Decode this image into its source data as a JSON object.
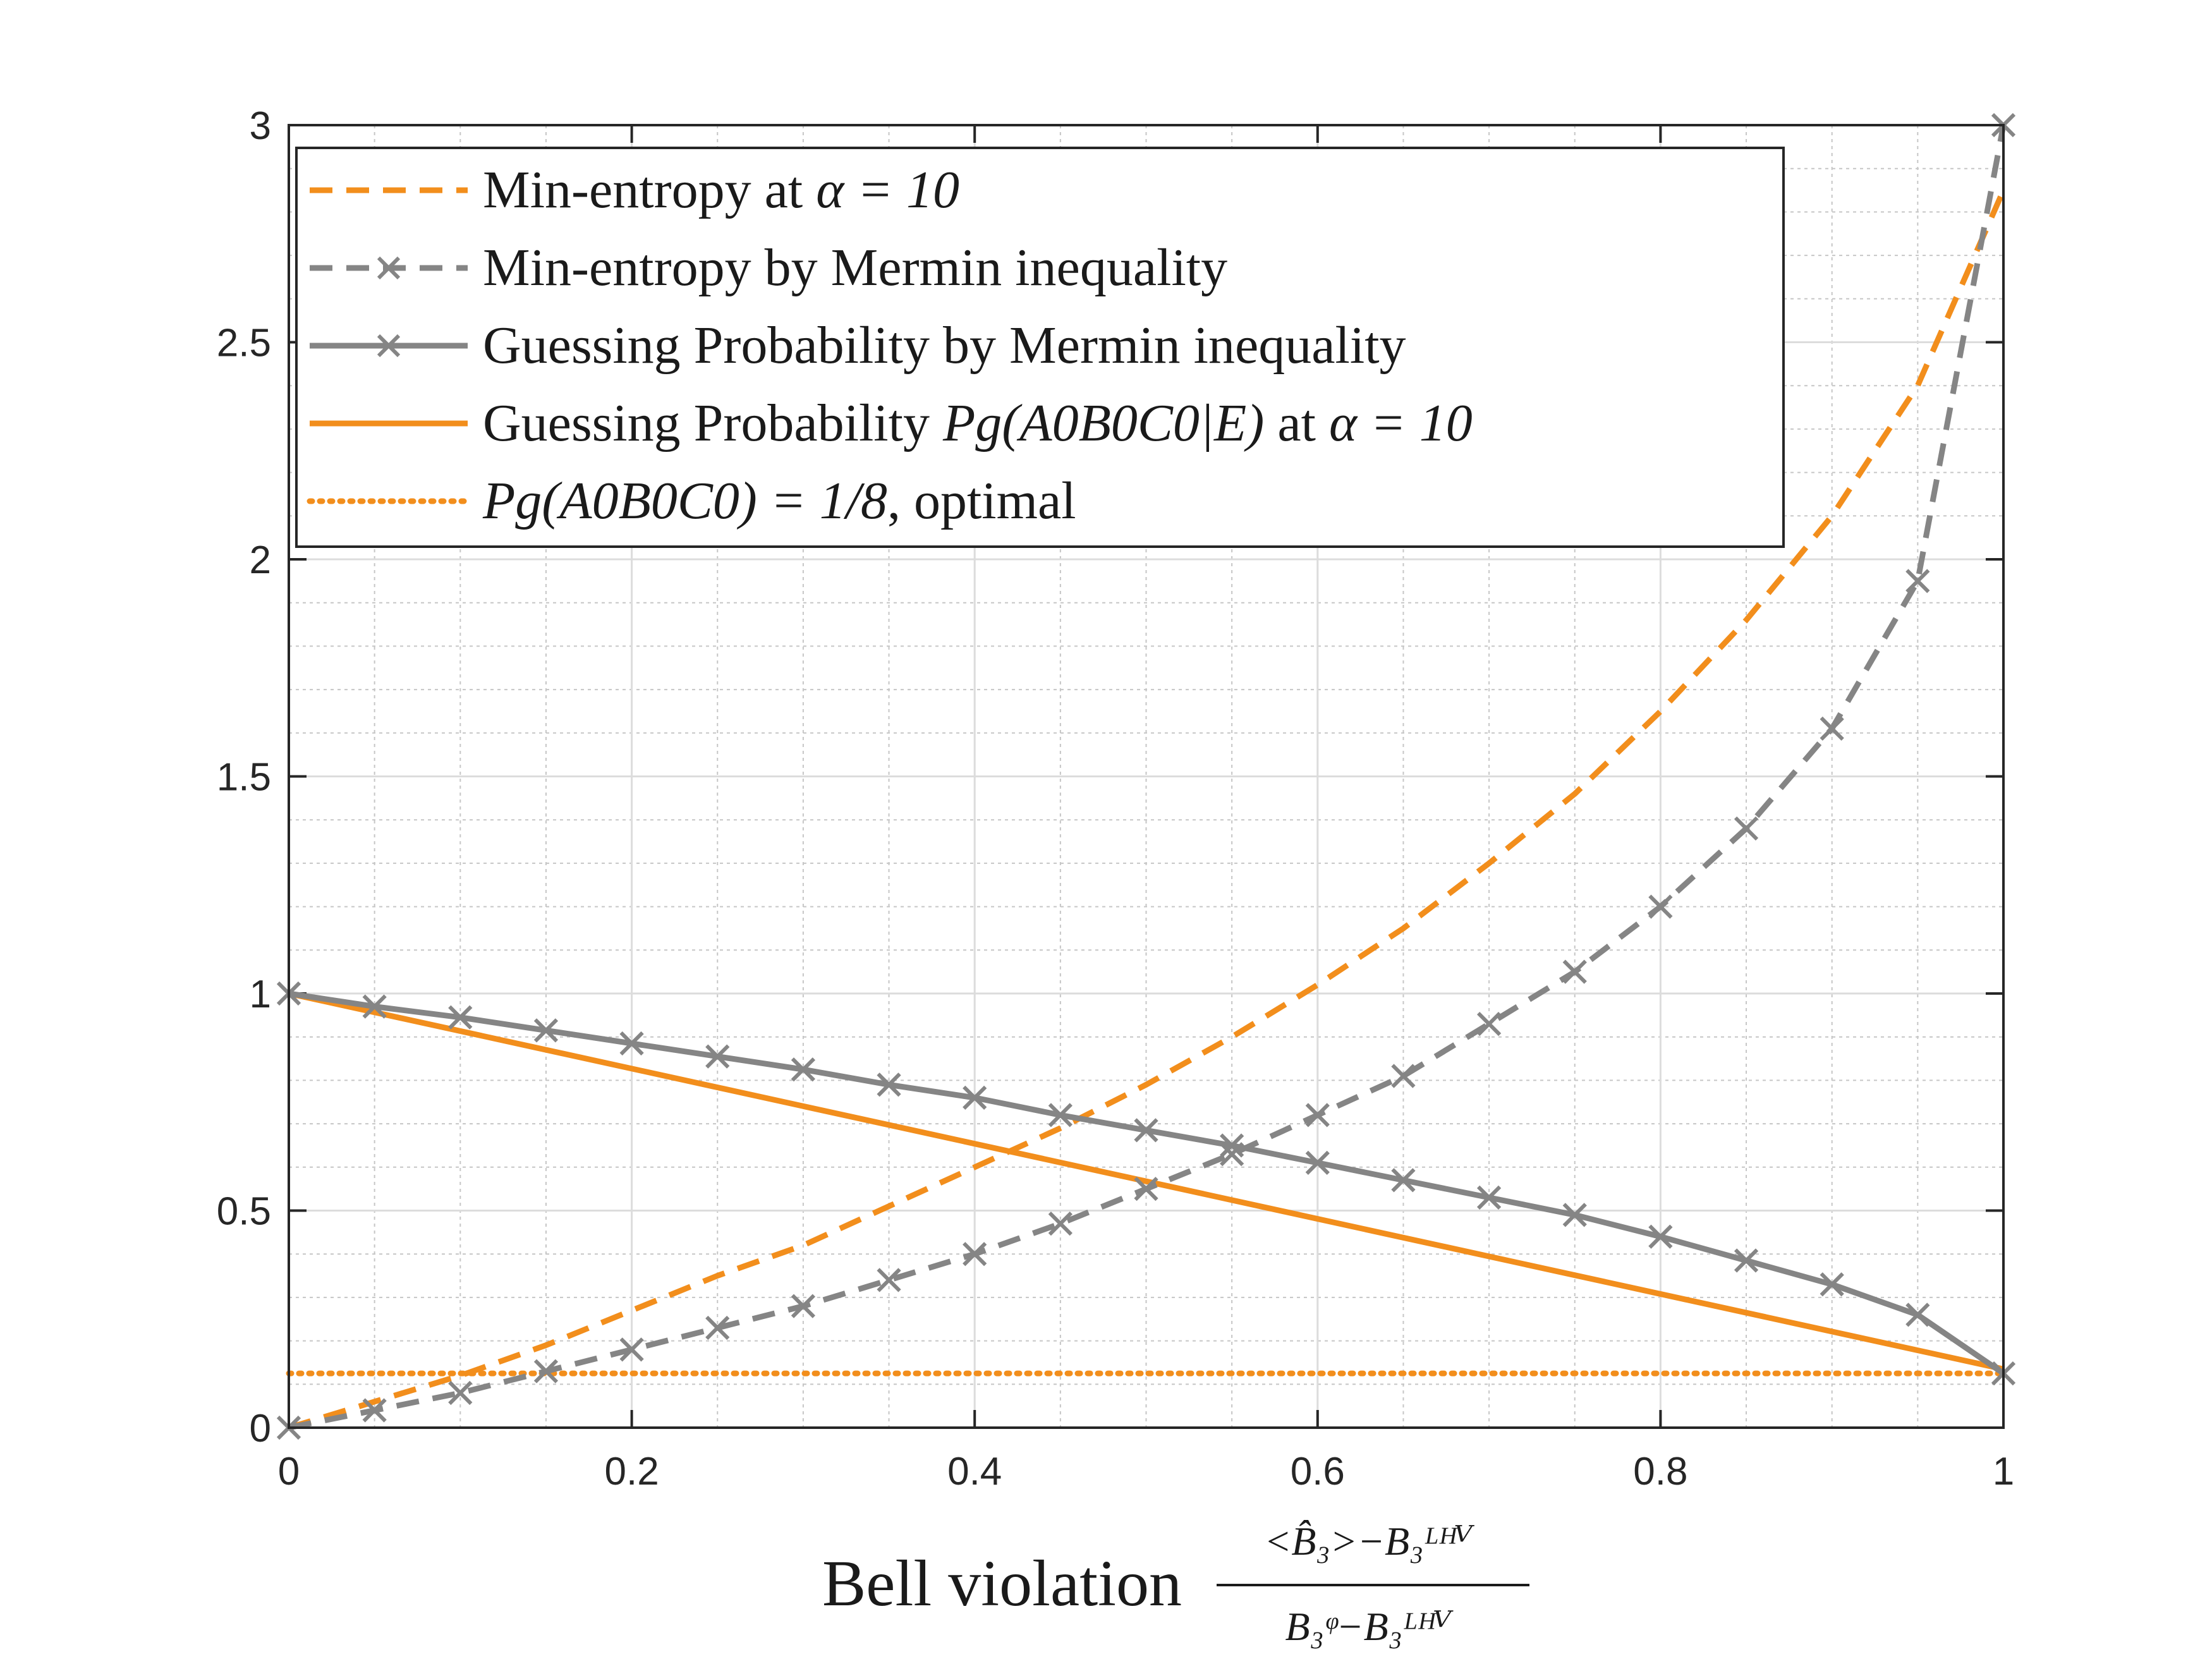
{
  "chart_data": {
    "type": "line",
    "title": "",
    "xlabel": "Bell violation",
    "xlabel_fraction": {
      "numerator": "<B̂₃>−B₃ᴸᴴⱽ",
      "denominator": "B₃ᵠ−B₃ᴸᴴⱽ"
    },
    "ylabel": "",
    "xlim": [
      0,
      1
    ],
    "ylim": [
      0,
      3
    ],
    "xticks": [
      0,
      0.2,
      0.4,
      0.6,
      0.8,
      1
    ],
    "xtick_labels": [
      "0",
      "0.2",
      "0.4",
      "0.6",
      "0.8",
      "1"
    ],
    "yticks": [
      0,
      0.5,
      1,
      1.5,
      2,
      2.5,
      3
    ],
    "ytick_labels": [
      "0",
      "0.5",
      "1",
      "1.5",
      "2",
      "2.5",
      "3"
    ],
    "grid": true,
    "legend_position": "top-left",
    "colors": {
      "orange": "#F28E1C",
      "gray": "#858585",
      "axis": "#262626"
    },
    "series": [
      {
        "name": "Min-entropy at α = 10",
        "style": "dashed",
        "color": "#F28E1C",
        "marker": "none",
        "x": [
          0,
          0.05,
          0.1,
          0.15,
          0.2,
          0.25,
          0.3,
          0.35,
          0.4,
          0.45,
          0.5,
          0.55,
          0.6,
          0.65,
          0.7,
          0.75,
          0.8,
          0.85,
          0.9,
          0.95,
          1.0
        ],
        "y": [
          0,
          0.06,
          0.12,
          0.19,
          0.27,
          0.35,
          0.42,
          0.51,
          0.6,
          0.69,
          0.79,
          0.9,
          1.02,
          1.15,
          1.3,
          1.46,
          1.65,
          1.86,
          2.1,
          2.4,
          2.85
        ]
      },
      {
        "name": "Min-entropy by Mermin inequality",
        "style": "dashed",
        "color": "#858585",
        "marker": "x",
        "x": [
          0,
          0.05,
          0.1,
          0.15,
          0.2,
          0.25,
          0.3,
          0.35,
          0.4,
          0.45,
          0.5,
          0.55,
          0.6,
          0.65,
          0.7,
          0.75,
          0.8,
          0.85,
          0.9,
          0.95,
          1.0
        ],
        "y": [
          0,
          0.04,
          0.08,
          0.13,
          0.18,
          0.23,
          0.28,
          0.34,
          0.4,
          0.47,
          0.55,
          0.63,
          0.72,
          0.81,
          0.93,
          1.05,
          1.2,
          1.38,
          1.61,
          1.95,
          3.0
        ]
      },
      {
        "name": "Guessing Probability by Mermin inequality",
        "style": "solid",
        "color": "#858585",
        "marker": "x",
        "x": [
          0,
          0.05,
          0.1,
          0.15,
          0.2,
          0.25,
          0.3,
          0.35,
          0.4,
          0.45,
          0.5,
          0.55,
          0.6,
          0.65,
          0.7,
          0.75,
          0.8,
          0.85,
          0.9,
          0.95,
          1.0
        ],
        "y": [
          1.0,
          0.97,
          0.945,
          0.915,
          0.885,
          0.855,
          0.825,
          0.79,
          0.76,
          0.72,
          0.685,
          0.65,
          0.61,
          0.57,
          0.53,
          0.49,
          0.44,
          0.385,
          0.33,
          0.26,
          0.125
        ]
      },
      {
        "name": "Guessing Probability Pg(A0B0C0|E) at α = 10",
        "style": "solid",
        "color": "#F28E1C",
        "marker": "none",
        "x": [
          0,
          1
        ],
        "y": [
          1.0,
          0.135
        ]
      },
      {
        "name": "Pg(A0B0C0) = 1/8, optimal",
        "style": "dotted",
        "color": "#F28E1C",
        "marker": "none",
        "x": [
          0,
          1
        ],
        "y": [
          0.125,
          0.125
        ]
      }
    ]
  },
  "legend": {
    "items": [
      {
        "text_before": "Min-entropy at ",
        "math": "α = 10",
        "text_after": ""
      },
      {
        "text_before": "Min-entropy by Mermin inequality",
        "math": "",
        "text_after": ""
      },
      {
        "text_before": "Guessing Probability by Mermin inequality",
        "math": "",
        "text_after": ""
      },
      {
        "text_before": "Guessing Probability ",
        "math": "Pg(A0B0C0|E)",
        "text_mid": " at ",
        "math2": "α = 10"
      },
      {
        "text_before": "",
        "math": "Pg(A0B0C0) = 1/8",
        "text_after": ", optimal"
      }
    ]
  }
}
